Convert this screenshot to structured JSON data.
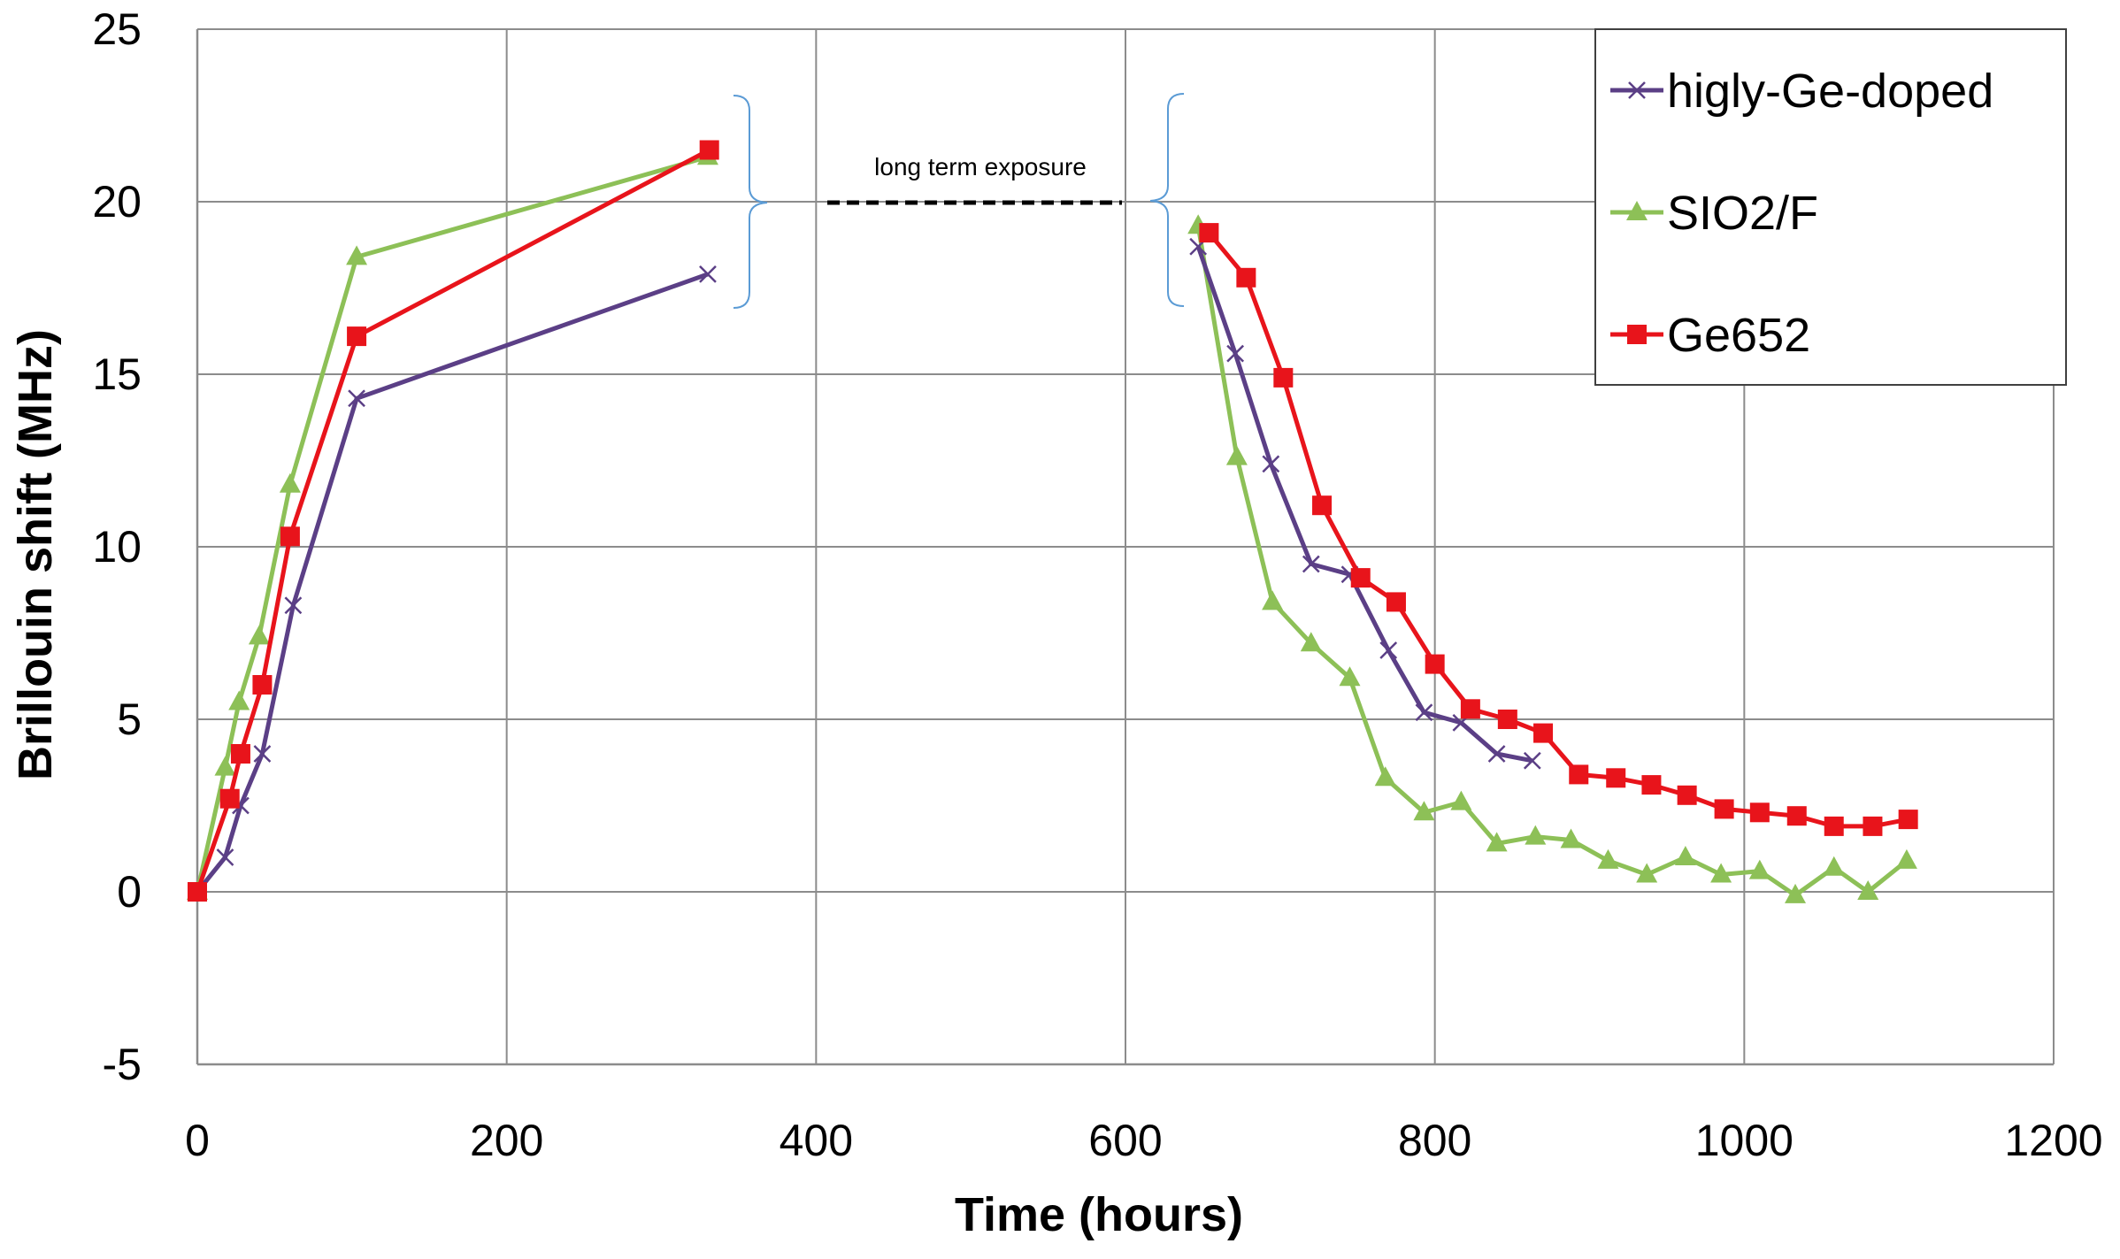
{
  "chart_data": {
    "type": "line",
    "title": "",
    "xlabel": "Time (hours)",
    "ylabel": "Brillouin shift (MHz)",
    "xlim": [
      0,
      1200
    ],
    "ylim": [
      -5,
      25
    ],
    "xticks": [
      "0",
      "200",
      "400",
      "600",
      "800",
      "1000",
      "1200"
    ],
    "yticks": [
      "-5",
      "0",
      "5",
      "10",
      "15",
      "20",
      "25"
    ],
    "grid": true,
    "legend_position": "top-right",
    "annotation": "long term exposure",
    "series": [
      {
        "name": "higly-Ge-doped",
        "color": "#5b3f86",
        "marker": "x",
        "segments": [
          [
            [
              0,
              0
            ],
            [
              18,
              1.0
            ],
            [
              28,
              2.5
            ],
            [
              42,
              4.0
            ],
            [
              62,
              8.3
            ],
            [
              103,
              14.3
            ],
            [
              330,
              17.9
            ]
          ],
          [
            [
              647,
              18.7
            ],
            [
              671,
              15.6
            ],
            [
              694,
              12.4
            ],
            [
              720,
              9.5
            ],
            [
              745,
              9.2
            ],
            [
              770,
              7.0
            ],
            [
              793,
              5.2
            ],
            [
              817,
              4.9
            ],
            [
              840,
              4.0
            ],
            [
              863,
              3.8
            ]
          ]
        ]
      },
      {
        "name": "SIO2/F",
        "color": "#8dc057",
        "marker": "triangle",
        "segments": [
          [
            [
              0,
              0
            ],
            [
              18,
              3.6
            ],
            [
              27,
              5.5
            ],
            [
              40,
              7.4
            ],
            [
              60,
              11.8
            ],
            [
              103,
              18.4
            ],
            [
              330,
              21.3
            ]
          ],
          [
            [
              647,
              19.3
            ],
            [
              672,
              12.6
            ],
            [
              695,
              8.4
            ],
            [
              720,
              7.2
            ],
            [
              745,
              6.2
            ],
            [
              768,
              3.3
            ],
            [
              793,
              2.3
            ],
            [
              817,
              2.6
            ],
            [
              840,
              1.4
            ],
            [
              865,
              1.6
            ],
            [
              888,
              1.5
            ],
            [
              912,
              0.9
            ],
            [
              937,
              0.5
            ],
            [
              962,
              1.0
            ],
            [
              985,
              0.5
            ],
            [
              1010,
              0.6
            ],
            [
              1033,
              -0.1
            ],
            [
              1058,
              0.7
            ],
            [
              1080,
              0.0
            ],
            [
              1105,
              0.9
            ]
          ]
        ]
      },
      {
        "name": "Ge652",
        "color": "#e8141b",
        "marker": "square",
        "segments": [
          [
            [
              0,
              0
            ],
            [
              21,
              2.7
            ],
            [
              28,
              4.0
            ],
            [
              42,
              6.0
            ],
            [
              60,
              10.3
            ],
            [
              103,
              16.1
            ],
            [
              331,
              21.5
            ]
          ],
          [
            [
              654,
              19.1
            ],
            [
              678,
              17.8
            ],
            [
              702,
              14.9
            ],
            [
              727,
              11.2
            ],
            [
              752,
              9.1
            ],
            [
              775,
              8.4
            ],
            [
              800,
              6.6
            ],
            [
              823,
              5.3
            ],
            [
              847,
              5.0
            ],
            [
              870,
              4.6
            ],
            [
              893,
              3.4
            ],
            [
              917,
              3.3
            ],
            [
              940,
              3.1
            ],
            [
              963,
              2.8
            ],
            [
              987,
              2.4
            ],
            [
              1010,
              2.3
            ],
            [
              1034,
              2.2
            ],
            [
              1058,
              1.9
            ],
            [
              1083,
              1.9
            ],
            [
              1106,
              2.1
            ]
          ]
        ]
      }
    ]
  }
}
